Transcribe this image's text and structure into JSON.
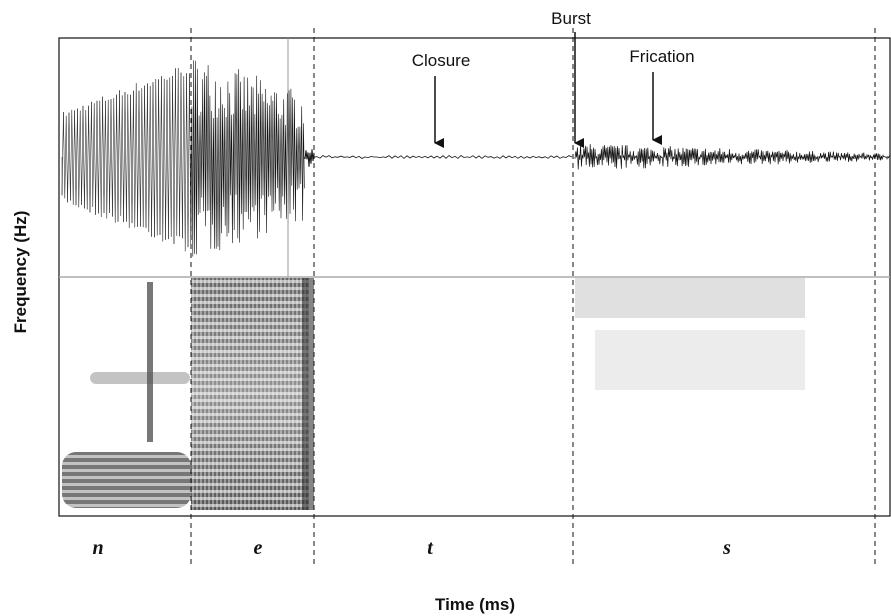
{
  "axes": {
    "y_label": "Frequency (Hz)",
    "x_label": "Time (ms)"
  },
  "annotations": {
    "closure": "Closure",
    "burst": "Burst",
    "frication": "Frication"
  },
  "segments": [
    "n",
    "e",
    "t",
    "s"
  ]
}
